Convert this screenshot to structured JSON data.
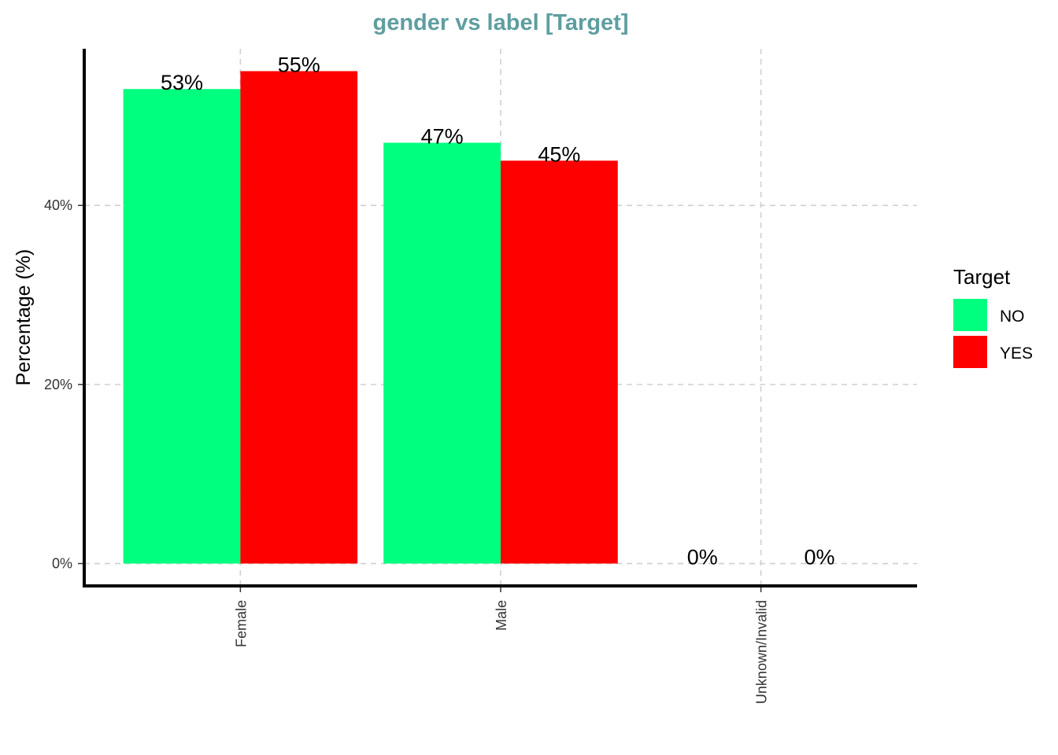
{
  "chart_data": {
    "type": "bar",
    "title": "gender vs label [Target]",
    "xlabel": "",
    "ylabel": "Percentage (%)",
    "categories": [
      "Female",
      "Male",
      "Unknown/Invalid"
    ],
    "series": [
      {
        "name": "NO",
        "color": "#00FF7F",
        "values": [
          53,
          47,
          0
        ],
        "labels": [
          "53%",
          "47%",
          "0%"
        ]
      },
      {
        "name": "YES",
        "color": "#FF0000",
        "values": [
          55,
          45,
          0
        ],
        "labels": [
          "55%",
          "45%",
          "0%"
        ]
      }
    ],
    "ylim": [
      -2.5,
      57.5
    ],
    "yticks": [
      0,
      20,
      40
    ],
    "ytick_labels": [
      "0%",
      "20%",
      "40%"
    ],
    "grid": true,
    "legend": {
      "title": "Target",
      "position": "right"
    },
    "title_color": "#5F9EA0"
  }
}
